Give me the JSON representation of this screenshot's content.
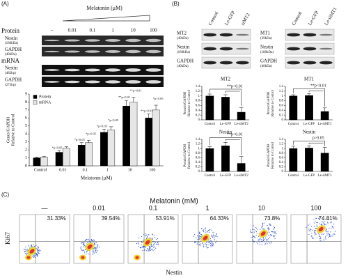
{
  "panels": {
    "a": {
      "label": "(A)",
      "treatment": "Melatonin (μM)",
      "doses": [
        "–",
        "0.01",
        "0.1",
        "1",
        "10",
        "100"
      ],
      "protein_label": "Protein",
      "mrna_label": "mRNA",
      "protein_rows": [
        {
          "name": "Nestin",
          "size": "(180kDa)"
        },
        {
          "name": "GAPDH",
          "size": "(40kDa)"
        }
      ],
      "mrna_rows": [
        {
          "name": "Nestin",
          "size": "(482bp)"
        },
        {
          "name": "GAPDH",
          "size": "(275bp)"
        }
      ]
    },
    "b": {
      "label": "(B)",
      "blots": [
        {
          "columns": [
            "Control",
            "Le-GFP",
            "siMT2"
          ],
          "rows": [
            {
              "name": "MT2",
              "size": "(40kDa)"
            },
            {
              "name": "Nestin",
              "size": "(180kDa)"
            },
            {
              "name": "GAPDH",
              "size": "(40kDa)"
            }
          ]
        },
        {
          "columns": [
            "Control",
            "Le-GFP",
            "Le-siMT1"
          ],
          "rows": [
            {
              "name": "MT1",
              "size": "(39kDa)"
            },
            {
              "name": "Nestin",
              "size": "(180kDa)"
            },
            {
              "name": "GAPDH",
              "size": "(40kDa)"
            }
          ]
        }
      ]
    },
    "c": {
      "label": "(C)",
      "title": "Melatonin (mM)",
      "doses": [
        "—",
        "0.01",
        "0.1",
        "1",
        "10",
        "100"
      ],
      "percentages": [
        "31.33%",
        "39.54%",
        "53.91%",
        "64.33%",
        "73.8%",
        "74.81%"
      ],
      "ylabel": "Ki67",
      "xlabel": "Nestin"
    }
  },
  "chart_data": [
    {
      "type": "bar",
      "ylabel": [
        "Genes/GAPDH",
        "Relative to Control"
      ],
      "xlabel": "Melatonin (μM)",
      "categories": [
        "Control",
        "0.01",
        "0.1",
        "1",
        "10",
        "100"
      ],
      "series": [
        {
          "name": "Protein",
          "color": "#000000",
          "values": [
            1.0,
            1.7,
            2.6,
            4.2,
            7.5,
            6.0
          ],
          "errors": [
            0.1,
            0.2,
            0.3,
            0.4,
            0.7,
            0.5
          ],
          "labels": [
            null,
            "*p<0.05",
            "*p<0.05",
            "*p<0.05",
            "**p<0.01",
            "**p<0.01"
          ]
        },
        {
          "name": "mRNA",
          "color": "#e6e6e6",
          "values": [
            1.1,
            2.2,
            2.9,
            4.5,
            8.0,
            7.0
          ],
          "errors": [
            0.1,
            0.2,
            0.3,
            0.4,
            0.6,
            0.6
          ],
          "labels": [
            null,
            null,
            "*p<0.05",
            "*p<0.05",
            "**p<0.01",
            "*p<0.05"
          ]
        }
      ],
      "ylim": [
        0,
        9
      ],
      "yticks": [
        0,
        1,
        2,
        3,
        4,
        5,
        6,
        7,
        8,
        9
      ],
      "legend": "top-left"
    },
    {
      "type": "bar",
      "title": "MT2",
      "ylabel": [
        "Protein/GAPDH",
        "Relative to Control"
      ],
      "categories": [
        "Control",
        "Le-GFP",
        "Le-siMT2"
      ],
      "values": [
        1.0,
        0.95,
        0.32
      ],
      "errors": [
        0.08,
        0.1,
        0.2
      ],
      "color": "#000000",
      "comparison": "**p<0.01",
      "ylim": [
        0,
        1.4
      ],
      "yticks": [
        0,
        0.2,
        0.4,
        0.6,
        0.8,
        1,
        1.2,
        1.4
      ]
    },
    {
      "type": "bar",
      "title": "MT1",
      "ylabel": [
        "Protein/GAPDH",
        "Relative to Control"
      ],
      "categories": [
        "Control",
        "Le-GFP",
        "Le-siMT1"
      ],
      "values": [
        1.0,
        1.02,
        0.35
      ],
      "errors": [
        0.05,
        0.08,
        0.15
      ],
      "color": "#000000",
      "comparison": "**p<0.01",
      "ylim": [
        0,
        1.4
      ],
      "yticks": [
        0,
        0.2,
        0.4,
        0.6,
        0.8,
        1,
        1.2,
        1.4
      ]
    },
    {
      "type": "bar",
      "title": "Nestin",
      "ylabel": [
        "Protein/GAPDH",
        "Relative to Control"
      ],
      "categories": [
        "Control",
        "Le-GFP",
        "Le-siMT2"
      ],
      "values": [
        1.0,
        1.12,
        0.35
      ],
      "errors": [
        0.08,
        0.15,
        0.3
      ],
      "color": "#000000",
      "comparison": "**p<0.01",
      "ylim": [
        0,
        1.4
      ],
      "yticks": [
        0,
        0.2,
        0.4,
        0.6,
        0.8,
        1,
        1.2,
        1.4
      ]
    },
    {
      "type": "bar",
      "title": "Nestin",
      "ylabel": [
        "Protein/GAPDH",
        "Relative to Control"
      ],
      "categories": [
        "Control",
        "Le-GFP",
        "Le-siMT1"
      ],
      "values": [
        1.0,
        1.02,
        0.8
      ],
      "errors": [
        0.1,
        0.1,
        0.25
      ],
      "color": "#000000",
      "comparison": "p>0.05",
      "ylim": [
        0,
        1.4
      ],
      "yticks": [
        0,
        0.2,
        0.4,
        0.6,
        0.8,
        1,
        1.2,
        1.4
      ]
    }
  ]
}
